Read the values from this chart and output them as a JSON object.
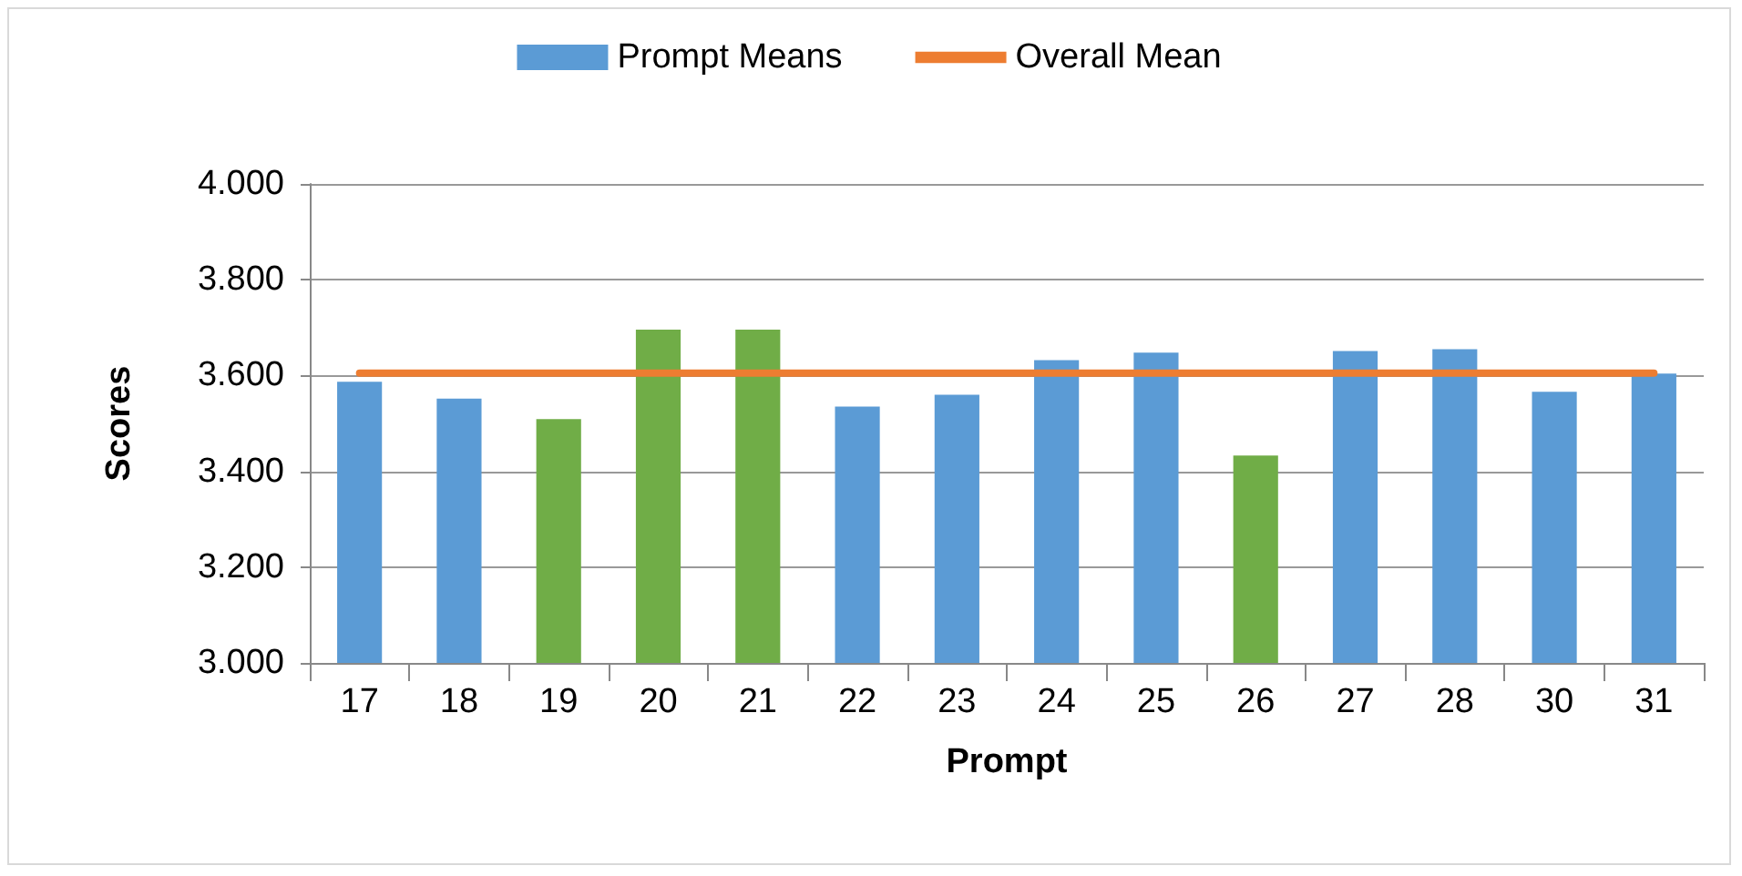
{
  "chart_data": {
    "type": "bar",
    "xlabel": "Prompt",
    "ylabel": "Scores",
    "categories": [
      "17",
      "18",
      "19",
      "20",
      "21",
      "22",
      "23",
      "24",
      "25",
      "26",
      "27",
      "28",
      "30",
      "31"
    ],
    "series": [
      {
        "name": "Prompt Means",
        "color": "#5b9bd5",
        "colors": [
          "#5b9bd5",
          "#5b9bd5",
          "#70ad47",
          "#70ad47",
          "#70ad47",
          "#5b9bd5",
          "#5b9bd5",
          "#5b9bd5",
          "#5b9bd5",
          "#70ad47",
          "#5b9bd5",
          "#5b9bd5",
          "#5b9bd5",
          "#5b9bd5"
        ],
        "values": [
          3.587,
          3.552,
          3.509,
          3.696,
          3.696,
          3.535,
          3.56,
          3.632,
          3.648,
          3.433,
          3.651,
          3.655,
          3.566,
          3.604
        ]
      },
      {
        "name": "Overall Mean",
        "type": "line",
        "color": "#ed7d31",
        "values": [
          3.605,
          3.605,
          3.605,
          3.605,
          3.605,
          3.605,
          3.605,
          3.605,
          3.605,
          3.605,
          3.605,
          3.605,
          3.605,
          3.605
        ]
      }
    ],
    "ylim": [
      3,
      4
    ],
    "yticks": [
      {
        "value": 3,
        "label": "3.000"
      },
      {
        "value": 3.2,
        "label": "3.200"
      },
      {
        "value": 3.4,
        "label": "3.400"
      },
      {
        "value": 3.6,
        "label": "3.600"
      },
      {
        "value": 3.8,
        "label": "3.800"
      },
      {
        "value": 4,
        "label": "4.000"
      }
    ],
    "grid": "y",
    "legend": "top",
    "marker": "none",
    "line_style": "solid"
  }
}
